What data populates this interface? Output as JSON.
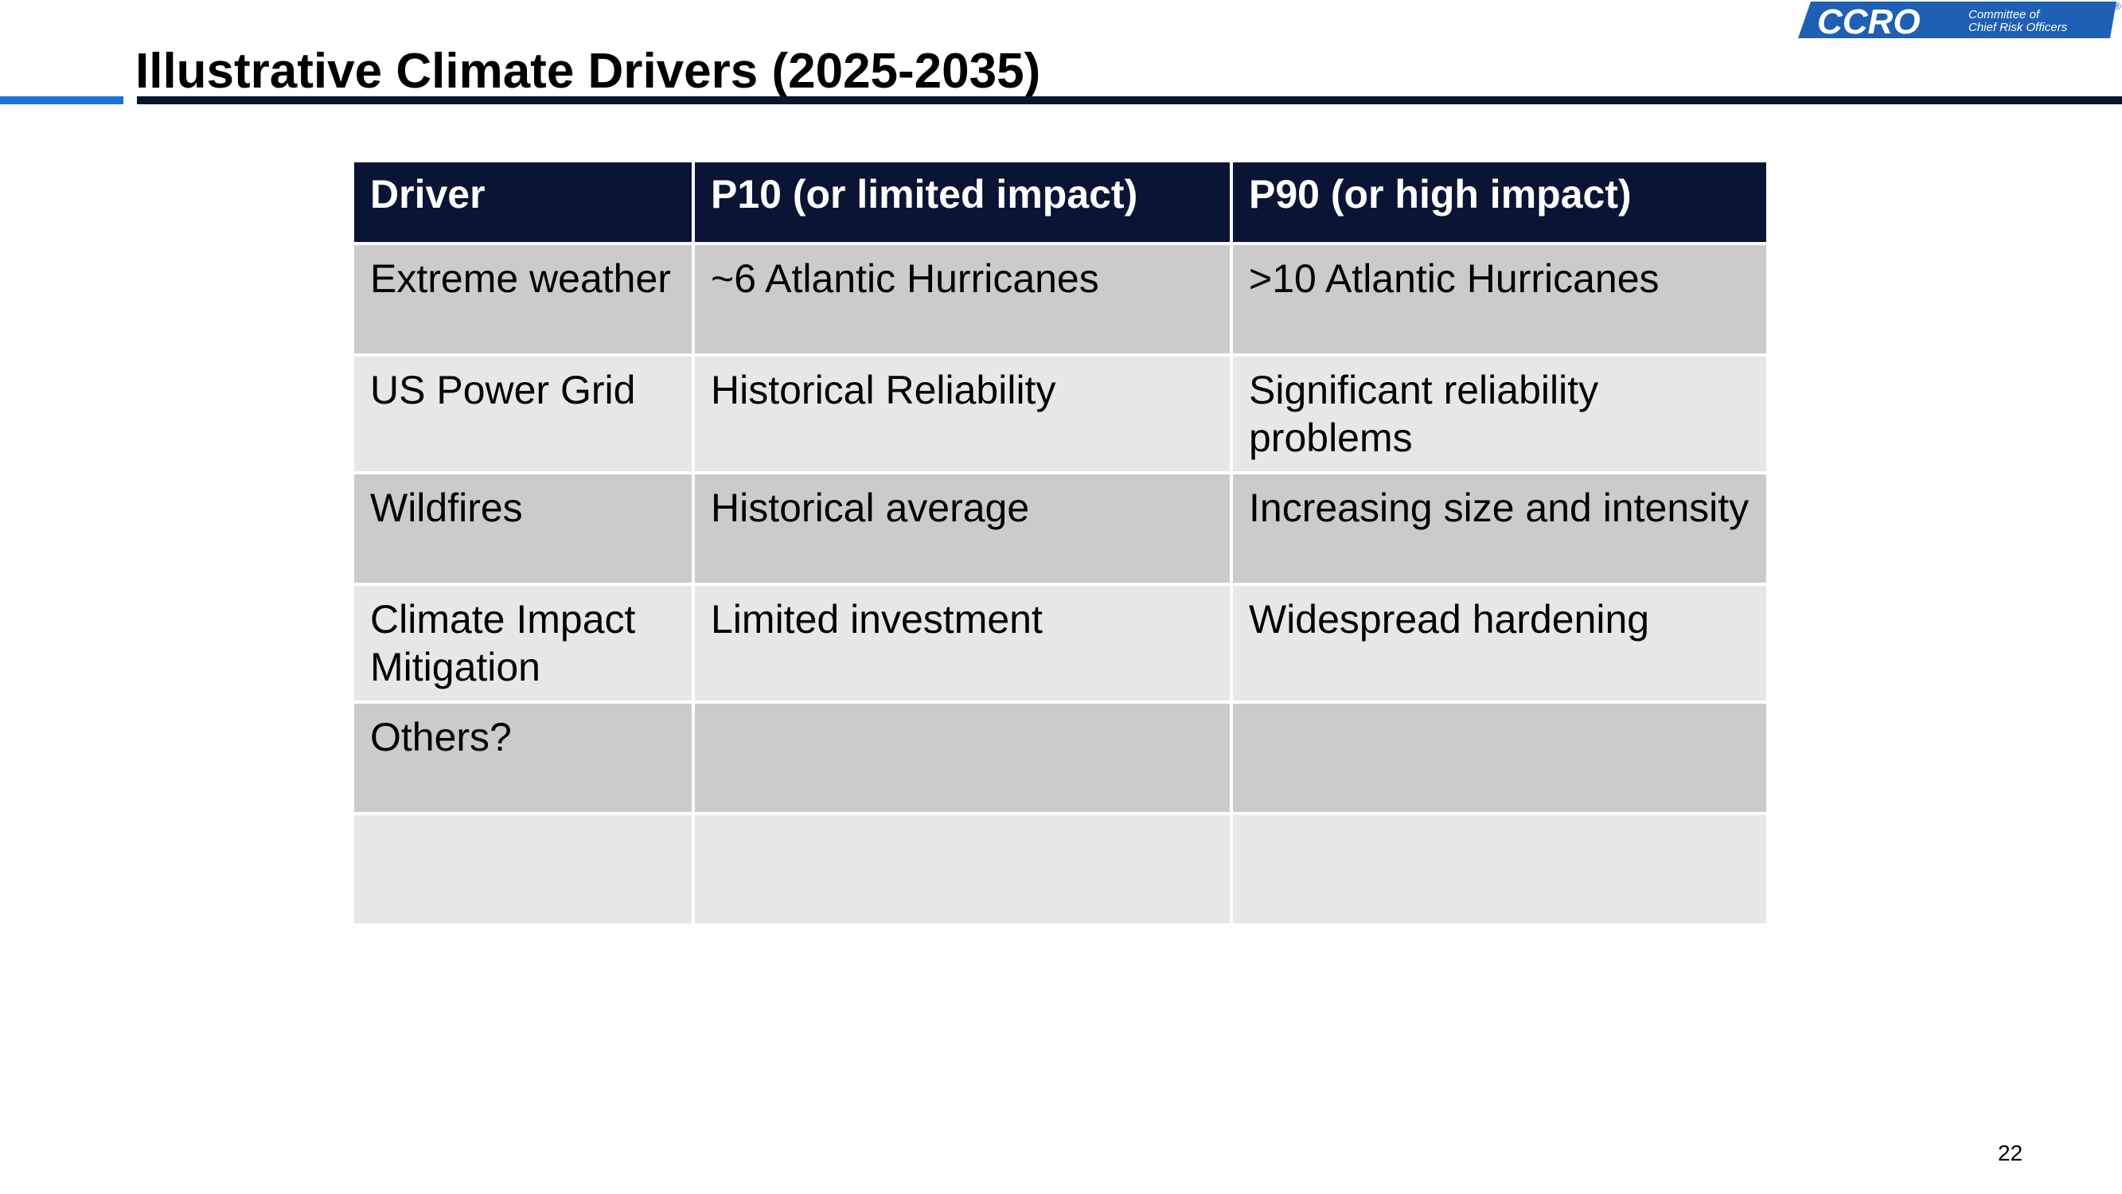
{
  "slide": {
    "title": "Illustrative Climate Drivers (2025-2035)",
    "page_number": "22"
  },
  "logo": {
    "brand_text": "CCRO",
    "tagline_line1": "Committee of",
    "tagline_line2": "Chief Risk Officers",
    "registered_mark": "®",
    "brand_color": "#1f5fb4"
  },
  "colors": {
    "accent_blue": "#1a73d9",
    "header_navy": "#0a1535",
    "row_dark": "#cbcbcd",
    "row_light": "#e7e7e8"
  },
  "table": {
    "headers": [
      "Driver",
      "P10 (or limited impact)",
      "P90 (or high impact)"
    ],
    "rows": [
      [
        "Extreme weather",
        "~6 Atlantic Hurricanes",
        ">10 Atlantic Hurricanes"
      ],
      [
        "US Power Grid",
        "Historical Reliability",
        "Significant reliability problems"
      ],
      [
        "Wildfires",
        "Historical average",
        "Increasing size and intensity"
      ],
      [
        "Climate Impact Mitigation",
        "Limited investment",
        "Widespread hardening"
      ],
      [
        "Others?",
        "",
        ""
      ],
      [
        "",
        "",
        ""
      ]
    ]
  }
}
